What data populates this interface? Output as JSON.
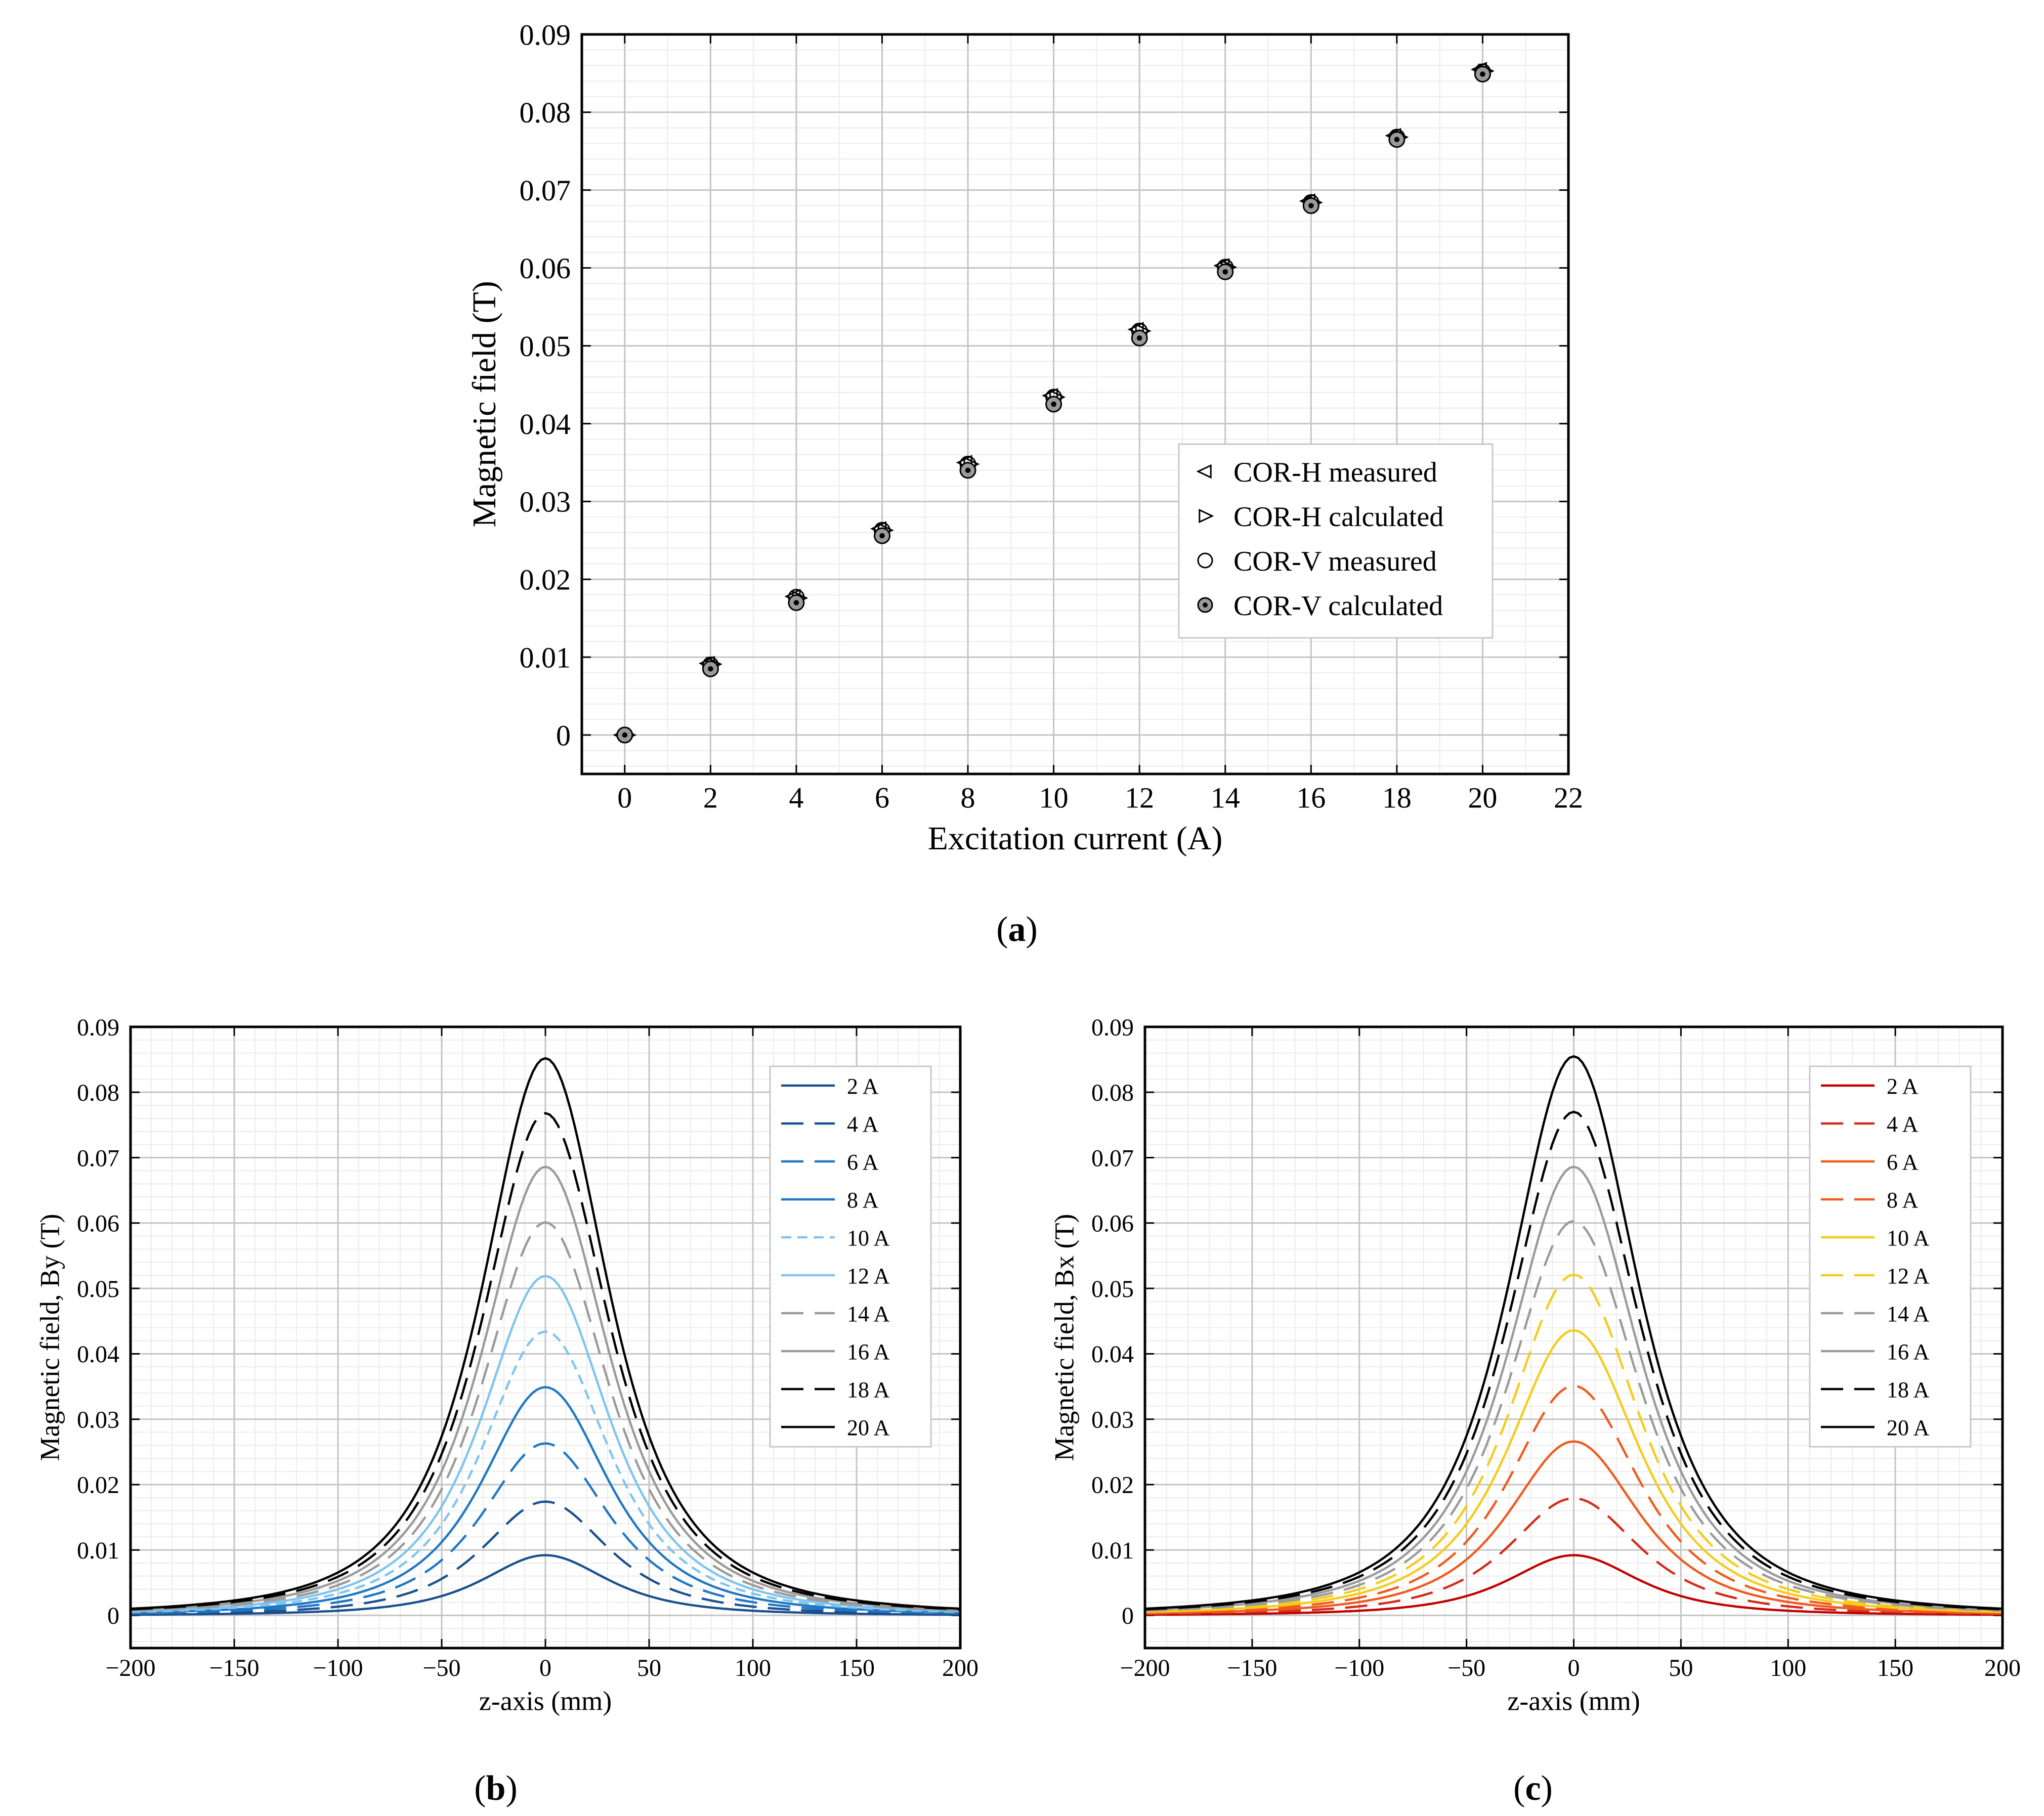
{
  "figure": {
    "panels": [
      {
        "id": "a",
        "letter": "a"
      },
      {
        "id": "b",
        "letter": "b"
      },
      {
        "id": "c",
        "letter": "c"
      }
    ]
  },
  "chart_data": [
    {
      "id": "a",
      "type": "scatter",
      "xlabel": "Excitation current (A)",
      "ylabel": "Magnetic field (T)",
      "xlim": [
        -1,
        22
      ],
      "ylim": [
        -0.005,
        0.09
      ],
      "xticks": [
        0,
        2,
        4,
        6,
        8,
        10,
        12,
        14,
        16,
        18,
        20,
        22
      ],
      "yticks": [
        0,
        0.01,
        0.02,
        0.03,
        0.04,
        0.05,
        0.06,
        0.07,
        0.08,
        0.09
      ],
      "ytick_labels": [
        "0",
        "0.01",
        "0.02",
        "0.03",
        "0.04",
        "0.05",
        "0.06",
        "0.07",
        "0.08",
        "0.09"
      ],
      "grid": true,
      "legend_position": "lower-right",
      "series": [
        {
          "name": "COR-H measured",
          "marker": "triangle-left",
          "x": [
            0,
            2,
            4,
            6,
            8,
            10,
            12,
            14,
            16,
            18,
            20
          ],
          "y": [
            0,
            0.0092,
            0.0178,
            0.0265,
            0.035,
            0.0436,
            0.0521,
            0.0603,
            0.0686,
            0.077,
            0.0855
          ]
        },
        {
          "name": "COR-H calculated",
          "marker": "triangle-right",
          "x": [
            0,
            2,
            4,
            6,
            8,
            10,
            12,
            14,
            16,
            18,
            20
          ],
          "y": [
            0,
            0.0091,
            0.0176,
            0.0263,
            0.0348,
            0.0434,
            0.0519,
            0.0601,
            0.0684,
            0.0768,
            0.0853
          ]
        },
        {
          "name": "COR-V measured",
          "marker": "circle",
          "x": [
            0,
            2,
            4,
            6,
            8,
            10,
            12,
            14,
            16,
            18,
            20
          ],
          "y": [
            0,
            0.009,
            0.0177,
            0.0263,
            0.0348,
            0.0434,
            0.0519,
            0.0601,
            0.0684,
            0.0768,
            0.0852
          ]
        },
        {
          "name": "COR-V calculated",
          "marker": "circle-dot",
          "x": [
            0,
            2,
            4,
            6,
            8,
            10,
            12,
            14,
            16,
            18,
            20
          ],
          "y": [
            0,
            0.0085,
            0.017,
            0.0256,
            0.034,
            0.0425,
            0.051,
            0.0595,
            0.068,
            0.0765,
            0.0849
          ]
        }
      ]
    },
    {
      "id": "b",
      "type": "line",
      "xlabel": "z-axis (mm)",
      "ylabel": "Magnetic field, By (T)",
      "xlim": [
        -200,
        200
      ],
      "ylim": [
        -0.005,
        0.09
      ],
      "xticks": [
        -200,
        -150,
        -100,
        -50,
        0,
        50,
        100,
        150,
        200
      ],
      "xtick_labels": [
        "−200",
        "−150",
        "−100",
        "−50",
        "0",
        "50",
        "100",
        "150",
        "200"
      ],
      "yticks": [
        0,
        0.01,
        0.02,
        0.03,
        0.04,
        0.05,
        0.06,
        0.07,
        0.08,
        0.09
      ],
      "ytick_labels": [
        "0",
        "0.01",
        "0.02",
        "0.03",
        "0.04",
        "0.05",
        "0.06",
        "0.07",
        "0.08",
        "0.09"
      ],
      "grid": true,
      "legend_position": "top-right",
      "profile": {
        "shape": "lorentzian-like peak centered at z = 0",
        "half_width_mm": 47
      },
      "series": [
        {
          "name": "2 A",
          "peak": 0.0092,
          "color": "#1a4f8f",
          "dash": "solid"
        },
        {
          "name": "4 A",
          "peak": 0.0174,
          "color": "#1a4f8f",
          "dash": "long"
        },
        {
          "name": "6 A",
          "peak": 0.0263,
          "color": "#1f77c4",
          "dash": "long"
        },
        {
          "name": "8 A",
          "peak": 0.0349,
          "color": "#1f77c4",
          "dash": "solid"
        },
        {
          "name": "10 A",
          "peak": 0.0434,
          "color": "#7fc4ef",
          "dash": "short"
        },
        {
          "name": "12 A",
          "peak": 0.0519,
          "color": "#7fc4ef",
          "dash": "solid"
        },
        {
          "name": "14 A",
          "peak": 0.0601,
          "color": "#9a9a9a",
          "dash": "long"
        },
        {
          "name": "16 A",
          "peak": 0.0686,
          "color": "#9a9a9a",
          "dash": "solid"
        },
        {
          "name": "18 A",
          "peak": 0.0768,
          "color": "#000000",
          "dash": "long"
        },
        {
          "name": "20 A",
          "peak": 0.0852,
          "color": "#000000",
          "dash": "solid"
        }
      ]
    },
    {
      "id": "c",
      "type": "line",
      "xlabel": "z-axis (mm)",
      "ylabel": "Magnetic field, Bx (T)",
      "xlim": [
        -200,
        200
      ],
      "ylim": [
        -0.005,
        0.09
      ],
      "xticks": [
        -200,
        -150,
        -100,
        -50,
        0,
        50,
        100,
        150,
        200
      ],
      "xtick_labels": [
        "−200",
        "−150",
        "−100",
        "−50",
        "0",
        "50",
        "100",
        "150",
        "200"
      ],
      "yticks": [
        0,
        0.01,
        0.02,
        0.03,
        0.04,
        0.05,
        0.06,
        0.07,
        0.08,
        0.09
      ],
      "ytick_labels": [
        "0",
        "0.01",
        "0.02",
        "0.03",
        "0.04",
        "0.05",
        "0.06",
        "0.07",
        "0.08",
        "0.09"
      ],
      "grid": true,
      "legend_position": "top-right",
      "profile": {
        "shape": "lorentzian-like peak centered at z = 0",
        "half_width_mm": 47
      },
      "series": [
        {
          "name": "2 A",
          "peak": 0.0092,
          "color": "#c00000",
          "dash": "solid"
        },
        {
          "name": "4 A",
          "peak": 0.0179,
          "color": "#d42a1a",
          "dash": "long"
        },
        {
          "name": "6 A",
          "peak": 0.0266,
          "color": "#f05a1e",
          "dash": "solid"
        },
        {
          "name": "8 A",
          "peak": 0.0351,
          "color": "#f05a1e",
          "dash": "long"
        },
        {
          "name": "10 A",
          "peak": 0.0436,
          "color": "#f5cc1a",
          "dash": "solid"
        },
        {
          "name": "12 A",
          "peak": 0.0521,
          "color": "#f5cc1a",
          "dash": "long"
        },
        {
          "name": "14 A",
          "peak": 0.0603,
          "color": "#9a9a9a",
          "dash": "long"
        },
        {
          "name": "16 A",
          "peak": 0.0686,
          "color": "#9a9a9a",
          "dash": "solid"
        },
        {
          "name": "18 A",
          "peak": 0.077,
          "color": "#000000",
          "dash": "long"
        },
        {
          "name": "20 A",
          "peak": 0.0855,
          "color": "#000000",
          "dash": "solid"
        }
      ]
    }
  ]
}
